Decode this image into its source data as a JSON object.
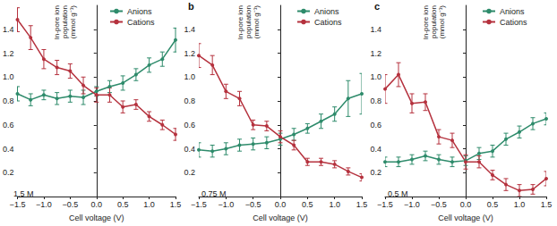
{
  "chart_data": [
    {
      "type": "line",
      "annotation": "1.5 M",
      "xlabel": "Cell voltage (V)",
      "ylabel": "In-pore ion\npopulation\n(mmol g⁻¹)",
      "x": [
        -1.5,
        -1.25,
        -1,
        -0.75,
        -0.5,
        -0.25,
        0,
        0.25,
        0.5,
        0.75,
        1,
        1.25,
        1.5
      ],
      "series": [
        {
          "name": "Anions",
          "color": "#2e8b6b",
          "values": [
            0.86,
            0.81,
            0.85,
            0.82,
            0.84,
            0.83,
            0.88,
            0.92,
            0.95,
            1.02,
            1.1,
            1.15,
            1.31
          ],
          "errors": [
            0.06,
            0.05,
            0.04,
            0.05,
            0.05,
            0.06,
            0.04,
            0.05,
            0.06,
            0.05,
            0.06,
            0.06,
            0.1
          ]
        },
        {
          "name": "Cations",
          "color": "#b5323e",
          "values": [
            1.48,
            1.33,
            1.15,
            1.08,
            1.05,
            0.93,
            0.85,
            0.85,
            0.75,
            0.77,
            0.67,
            0.6,
            0.52
          ],
          "errors": [
            0.1,
            0.1,
            0.08,
            0.06,
            0.06,
            0.07,
            0.06,
            0.06,
            0.05,
            0.04,
            0.04,
            0.04,
            0.05
          ]
        }
      ],
      "xlim": [
        -1.5,
        1.5
      ],
      "xticks": [
        {
          "value": -1.5,
          "label": "−1.5"
        },
        {
          "value": -1,
          "label": "−1.0"
        },
        {
          "value": -0.5,
          "label": "−0.5"
        },
        {
          "value": 0,
          "label": "0.0"
        },
        0.5,
        {
          "value": 1,
          "label": "1.0"
        },
        1.5
      ],
      "ylim": [
        0,
        1.6
      ],
      "yticks": [
        0.2,
        0.4,
        0.6,
        0.8,
        {
          "value": 1,
          "label": "1.0"
        },
        1.2,
        1.4
      ],
      "grid": false,
      "legend": "upper right",
      "marker": "circle",
      "line_style": "solid"
    },
    {
      "type": "line",
      "title": "b",
      "annotation": "0.75 M",
      "xlabel": "Cell voltage (V)",
      "ylabel": "In-pore ion\npopulation\n(mmol g⁻¹)",
      "x": [
        -1.5,
        -1.25,
        -1,
        -0.75,
        -0.5,
        -0.25,
        0,
        0.25,
        0.5,
        0.75,
        1,
        1.25,
        1.5
      ],
      "series": [
        {
          "name": "Anions",
          "color": "#2e8b6b",
          "values": [
            0.39,
            0.38,
            0.4,
            0.43,
            0.44,
            0.45,
            0.48,
            0.52,
            0.57,
            0.63,
            0.69,
            0.82,
            0.86
          ],
          "errors": [
            0.06,
            0.05,
            0.05,
            0.05,
            0.05,
            0.05,
            0.05,
            0.05,
            0.04,
            0.06,
            0.06,
            0.15,
            0.17
          ]
        },
        {
          "name": "Cations",
          "color": "#b5323e",
          "values": [
            1.18,
            1.1,
            0.88,
            0.82,
            0.6,
            0.59,
            0.5,
            0.43,
            0.29,
            0.29,
            0.27,
            0.21,
            0.16
          ],
          "errors": [
            0.1,
            0.08,
            0.06,
            0.06,
            0.04,
            0.04,
            0.05,
            0.04,
            0.03,
            0.03,
            0.03,
            0.03,
            0.03
          ]
        }
      ],
      "xlim": [
        -1.5,
        1.5
      ],
      "xticks": [
        {
          "value": -1.5,
          "label": "−1.5"
        },
        {
          "value": -1,
          "label": "−1.0"
        },
        {
          "value": -0.5,
          "label": "−0.5"
        },
        {
          "value": 0,
          "label": "0.0"
        },
        0.5,
        {
          "value": 1,
          "label": "1.0"
        },
        1.5
      ],
      "ylim": [
        0,
        1.6
      ],
      "yticks": [
        0.2,
        0.4,
        0.6,
        0.8,
        {
          "value": 1,
          "label": "1.0"
        },
        1.2,
        1.4
      ],
      "grid": false,
      "legend": "upper right",
      "marker": "circle",
      "line_style": "solid"
    },
    {
      "type": "line",
      "title": "c",
      "annotation": "0.5 M",
      "xlabel": "Cell voltage (V)",
      "ylabel": "In-pore ion\npopulation\n(mmol g⁻¹)",
      "x": [
        -1.5,
        -1.25,
        -1,
        -0.75,
        -0.5,
        -0.25,
        0,
        0.25,
        0.5,
        0.75,
        1,
        1.25,
        1.5
      ],
      "series": [
        {
          "name": "Anions",
          "color": "#2e8b6b",
          "values": [
            0.29,
            0.29,
            0.31,
            0.34,
            0.31,
            0.29,
            0.3,
            0.36,
            0.38,
            0.48,
            0.54,
            0.61,
            0.65
          ],
          "errors": [
            0.04,
            0.04,
            0.04,
            0.04,
            0.04,
            0.04,
            0.04,
            0.05,
            0.05,
            0.05,
            0.05,
            0.05,
            0.05
          ]
        },
        {
          "name": "Cations",
          "color": "#b5323e",
          "values": [
            0.9,
            1.02,
            0.78,
            0.79,
            0.5,
            0.47,
            0.29,
            0.29,
            0.18,
            0.1,
            0.05,
            0.06,
            0.15
          ],
          "errors": [
            0.12,
            0.1,
            0.08,
            0.07,
            0.06,
            0.06,
            0.06,
            0.05,
            0.04,
            0.05,
            0.05,
            0.04,
            0.06
          ]
        }
      ],
      "xlim": [
        -1.5,
        1.5
      ],
      "xticks": [
        {
          "value": -1.5,
          "label": "−1.5"
        },
        {
          "value": -1,
          "label": "−1.0"
        },
        {
          "value": -0.5,
          "label": "−0.5"
        },
        {
          "value": 0,
          "label": "0.0"
        },
        0.5,
        {
          "value": 1,
          "label": "1.0"
        },
        1.5
      ],
      "ylim": [
        0,
        1.6
      ],
      "yticks": [
        0.2,
        0.4,
        0.6,
        0.8,
        {
          "value": 1,
          "label": "1.0"
        },
        1.2,
        1.4
      ],
      "grid": false,
      "legend": "upper right",
      "marker": "circle",
      "line_style": "solid"
    }
  ]
}
